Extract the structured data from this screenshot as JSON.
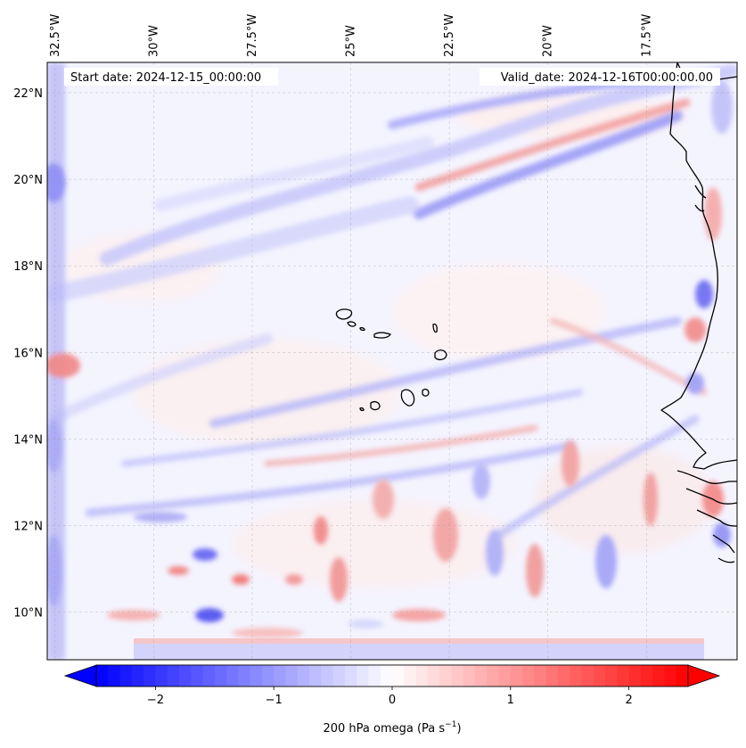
{
  "map": {
    "start_label": "Start date: 2024-12-15_00:00:00",
    "valid_label": "Valid_date: 2024-12-16T00:00:00.00",
    "lon_ticks": [
      "32.5°W",
      "30°W",
      "27.5°W",
      "25°W",
      "22.5°W",
      "20°W",
      "17.5°W"
    ],
    "lat_ticks": [
      "22°N",
      "20°N",
      "18°N",
      "16°N",
      "14°N",
      "12°N",
      "10°N"
    ],
    "extent": {
      "lon_min": -32.7,
      "lon_max": -15.2,
      "lat_min": 8.9,
      "lat_max": 22.7
    },
    "colormap": "bwr",
    "background_value_color": "#f4f4ff",
    "coastline_color": "#000000",
    "gridlines": true
  },
  "colorbar": {
    "label_prefix": "200 hPa omega (Pa s",
    "label_exp": "−1",
    "label_suffix": ")",
    "ticks": [
      "−2",
      "−1",
      "0",
      "1",
      "2"
    ],
    "tick_values": [
      -2,
      -1,
      0,
      1,
      2
    ],
    "range": [
      -2.5,
      2.5
    ],
    "extend": "both",
    "color_min": "#0000ff",
    "color_mid": "#ffffff",
    "color_max": "#ff0000"
  }
}
